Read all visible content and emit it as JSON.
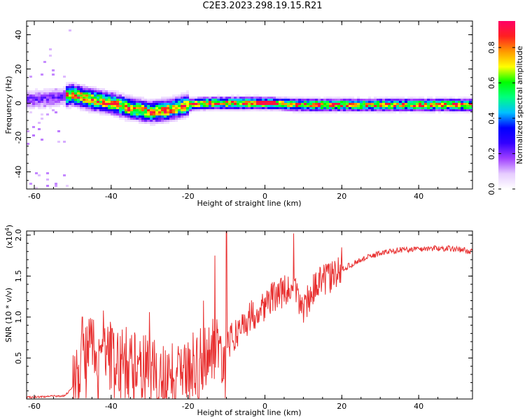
{
  "title": "C2E3.2023.298.19.15.R21",
  "chart_data": [
    {
      "type": "heatmap",
      "xlabel": "Height of straight line (km)",
      "ylabel": "Frequency (Hz)",
      "xlim": [
        -62,
        54
      ],
      "ylim": [
        -50,
        48
      ],
      "xticks": [
        -60,
        -40,
        -20,
        0,
        20,
        40
      ],
      "yticks": [
        -40,
        -20,
        0,
        20,
        40
      ],
      "ytick_labels": [
        "-40",
        "-20",
        "0",
        "20",
        "40"
      ],
      "colorbar": {
        "label": "Normalized spectral amplitude",
        "range": [
          0,
          0.95
        ],
        "ticks": [
          0.0,
          0.2,
          0.4,
          0.6,
          0.8
        ],
        "tick_labels": [
          "0.0",
          "0.2",
          "0.4",
          "0.6",
          "0.8"
        ],
        "colormap": [
          "#ffffff",
          "#e6ccff",
          "#a040ff",
          "#3300ff",
          "#0000ff",
          "#00c0ff",
          "#00ff80",
          "#00ff00",
          "#ffff00",
          "#ff9900",
          "#ff2020",
          "#ff0066"
        ]
      },
      "ridge": {
        "x": [
          -62,
          -55,
          -50,
          -45,
          -40,
          -35,
          -30,
          -25,
          -20,
          -15,
          -10,
          -5,
          0,
          10,
          20,
          30,
          40,
          54
        ],
        "y": [
          2,
          3,
          5,
          2,
          0,
          -3,
          -5,
          -4,
          -1,
          0,
          0,
          0,
          0,
          -1,
          -1,
          -1,
          -1,
          -1
        ]
      }
    },
    {
      "type": "line",
      "xlabel": "Height of straight line (km)",
      "ylabel": "SNR (10 * v/v)",
      "y_multiplier": "(x10",
      "y_multiplier_exp": "4",
      "y_multiplier_close": ")",
      "xlim": [
        -62,
        54
      ],
      "ylim": [
        0,
        2.05
      ],
      "xticks": [
        -60,
        -40,
        -20,
        0,
        20,
        40
      ],
      "yticks": [
        0.5,
        1.0,
        1.5,
        2.0
      ],
      "ytick_labels": [
        "0.5",
        "1.0",
        "1.5",
        "2.0"
      ],
      "color": "#e83030",
      "envelope": {
        "x": [
          -62,
          -52,
          -50,
          -48,
          -47,
          -45,
          -42,
          -38,
          -34,
          -30,
          -26,
          -22,
          -18,
          -15,
          -12,
          -10,
          -8,
          -5,
          -2,
          0,
          3,
          6,
          8,
          10,
          12,
          15,
          18,
          20,
          25,
          30,
          35,
          40,
          45,
          50,
          54
        ],
        "y": [
          0.02,
          0.04,
          0.15,
          0.45,
          0.6,
          0.62,
          0.55,
          0.5,
          0.45,
          0.35,
          0.25,
          0.3,
          0.45,
          0.55,
          0.6,
          0.62,
          0.78,
          0.95,
          1.08,
          1.15,
          1.28,
          1.32,
          1.3,
          1.1,
          1.3,
          1.45,
          1.5,
          1.58,
          1.7,
          1.78,
          1.82,
          1.83,
          1.84,
          1.83,
          1.8
        ]
      },
      "peaks": [
        {
          "x": -47.5,
          "y": 1.0
        },
        {
          "x": -42,
          "y": 1.08
        },
        {
          "x": -30,
          "y": 1.06
        },
        {
          "x": -16,
          "y": 1.2
        },
        {
          "x": -13,
          "y": 1.75
        },
        {
          "x": -10,
          "y": 2.05
        },
        {
          "x": 7.5,
          "y": 2.02
        },
        {
          "x": 20,
          "y": 1.85
        }
      ]
    }
  ]
}
